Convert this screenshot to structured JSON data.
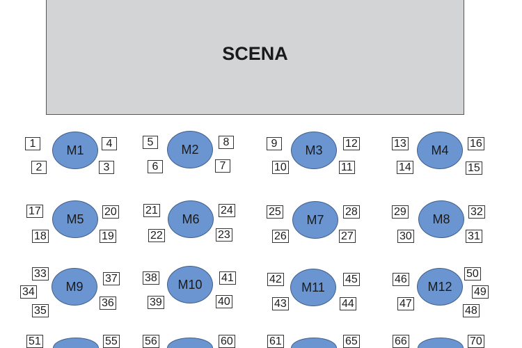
{
  "stage": {
    "label": "SCENA",
    "color": "#d3d4d6"
  },
  "table_color": "#6a95d0",
  "tables": [
    {
      "label": "M1",
      "seats": [
        "1",
        "4",
        "2",
        "3"
      ]
    },
    {
      "label": "M2",
      "seats": [
        "5",
        "8",
        "6",
        "7"
      ]
    },
    {
      "label": "M3",
      "seats": [
        "9",
        "12",
        "10",
        "11"
      ]
    },
    {
      "label": "M4",
      "seats": [
        "13",
        "16",
        "14",
        "15"
      ]
    },
    {
      "label": "M5",
      "seats": [
        "17",
        "20",
        "18",
        "19"
      ]
    },
    {
      "label": "M6",
      "seats": [
        "21",
        "24",
        "22",
        "23"
      ]
    },
    {
      "label": "M7",
      "seats": [
        "25",
        "28",
        "26",
        "27"
      ]
    },
    {
      "label": "M8",
      "seats": [
        "29",
        "32",
        "30",
        "31"
      ]
    },
    {
      "label": "M9",
      "seats": [
        "33",
        "37",
        "34",
        "36",
        "35"
      ]
    },
    {
      "label": "M10",
      "seats": [
        "38",
        "41",
        "39",
        "40"
      ]
    },
    {
      "label": "M11",
      "seats": [
        "42",
        "45",
        "43",
        "44"
      ]
    },
    {
      "label": "M12",
      "seats": [
        "46",
        "50",
        "49",
        "47",
        "48"
      ]
    },
    {
      "label": "",
      "seats": [
        "51",
        "55"
      ]
    },
    {
      "label": "",
      "seats": [
        "56",
        "60"
      ]
    },
    {
      "label": "",
      "seats": [
        "61",
        "65"
      ]
    },
    {
      "label": "",
      "seats": [
        "66",
        "70"
      ]
    }
  ]
}
